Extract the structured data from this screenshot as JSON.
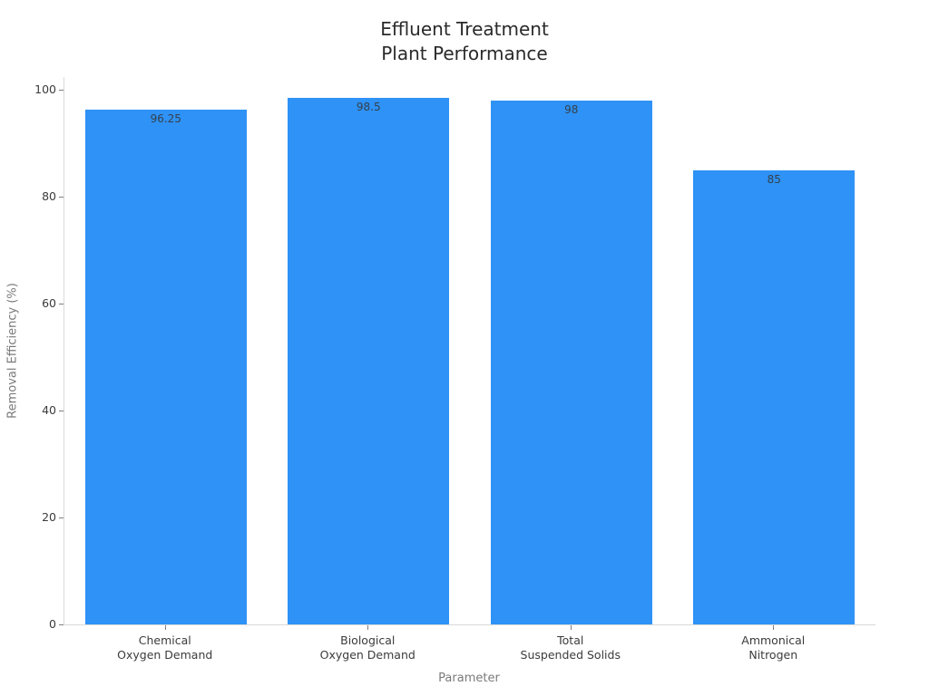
{
  "title": "Effluent Treatment\nPlant Performance",
  "chart_data": {
    "type": "bar",
    "title": "Effluent Treatment\nPlant Performance",
    "categories": [
      "Chemical\nOxygen Demand",
      "Biological\nOxygen Demand",
      "Total\nSuspended Solids",
      "Ammonical\nNitrogen"
    ],
    "values": [
      96.25,
      98.5,
      98,
      85
    ],
    "value_labels": [
      "96.25",
      "98.5",
      "98",
      "85"
    ],
    "xlabel": "Parameter",
    "ylabel": "Removal Efficiency (%)",
    "ylim": [
      0,
      100
    ],
    "yticks": [
      0,
      20,
      40,
      60,
      80,
      100
    ],
    "bar_color": "#2e92f6",
    "grid": false,
    "legend": false
  },
  "colors": {
    "bar": "#2e92f6",
    "axis_line": "#d9d9d9",
    "tick_mark": "#7f7f7f",
    "tick_text": "#3b3b3b",
    "axis_title_text": "#7a7a7a",
    "title_text": "#2a2a2a",
    "value_label_text": "#36404a",
    "background": "#ffffff"
  }
}
